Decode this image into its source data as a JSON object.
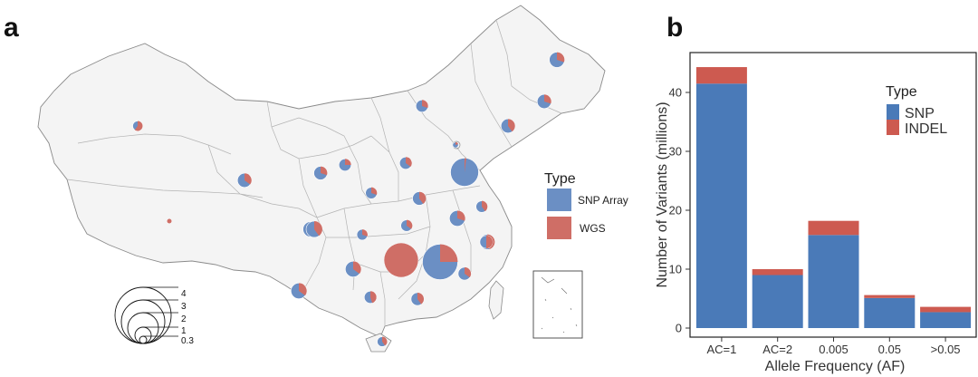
{
  "colors": {
    "snp": "#4a7ab8",
    "indel": "#cd5a50",
    "snp_array": "#6b8fc4",
    "wgs": "#cf6e66"
  },
  "panel_a": {
    "letter": "a",
    "legend": {
      "title": "Type",
      "items": [
        "SNP Array",
        "WGS"
      ]
    },
    "size_legend": {
      "labels": [
        "4",
        "3",
        "2",
        "1",
        "0.3"
      ]
    }
  },
  "panel_b": {
    "letter": "b"
  },
  "chart_data": [
    {
      "type": "bar",
      "stacked": true,
      "categories": [
        "AC=1",
        "AC=2",
        "0.005",
        "0.05",
        ">0.05"
      ],
      "series": [
        {
          "name": "SNP",
          "values": [
            41.5,
            9.0,
            15.8,
            5.1,
            2.7
          ]
        },
        {
          "name": "INDEL",
          "values": [
            2.8,
            1.0,
            2.4,
            0.5,
            0.9
          ]
        }
      ],
      "title": "",
      "xlabel": "Allele Frequency (AF)",
      "ylabel": "Number of Variants (millions)",
      "ylim": [
        0,
        45
      ],
      "yticks": [
        0,
        10,
        20,
        30,
        40
      ],
      "legend": {
        "title": "Type",
        "position": "top-right"
      }
    },
    {
      "type": "pie-map",
      "title": "",
      "legend": {
        "title": "Type",
        "items": [
          "SNP Array",
          "WGS"
        ]
      },
      "size_legend": [
        "4",
        "3",
        "2",
        "1",
        "0.3"
      ],
      "points": [
        {
          "total": 0.3,
          "wgs_frac": 0.6
        },
        {
          "total": 0.05,
          "wgs_frac": 1.0
        },
        {
          "total": 0.6,
          "wgs_frac": 0.35
        },
        {
          "total": 0.55,
          "wgs_frac": 0.3
        },
        {
          "total": 0.45,
          "wgs_frac": 0.25
        },
        {
          "total": 0.4,
          "wgs_frac": 0.3
        },
        {
          "total": 0.45,
          "wgs_frac": 0.35
        },
        {
          "total": 0.1,
          "wgs_frac": 0.2
        },
        {
          "total": 0.45,
          "wgs_frac": 0.3
        },
        {
          "total": 2.4,
          "wgs_frac": 0.02
        },
        {
          "total": 0.7,
          "wgs_frac": 0.3
        },
        {
          "total": 0.6,
          "wgs_frac": 0.3
        },
        {
          "total": 0.6,
          "wgs_frac": 0.4
        },
        {
          "total": 0.55,
          "wgs_frac": 0.4
        },
        {
          "total": 0.4,
          "wgs_frac": 0.4
        },
        {
          "total": 0.4,
          "wgs_frac": 0.35
        },
        {
          "total": 0.75,
          "wgs_frac": 0.3
        },
        {
          "total": 0.35,
          "wgs_frac": 0.3
        },
        {
          "total": 0.7,
          "wgs_frac": 0.3
        },
        {
          "total": 3.5,
          "wgs_frac": 1.0
        },
        {
          "total": 3.8,
          "wgs_frac": 0.25
        },
        {
          "total": 0.75,
          "wgs_frac": 0.35
        },
        {
          "total": 0.75,
          "wgs_frac": 0.35
        },
        {
          "total": 0.45,
          "wgs_frac": 0.45
        },
        {
          "total": 0.5,
          "wgs_frac": 0.4
        },
        {
          "total": 0.5,
          "wgs_frac": 0.35
        },
        {
          "total": 0.3,
          "wgs_frac": 0.4
        },
        {
          "total": 0.7,
          "wgs_frac": 0.45
        },
        {
          "total": 0.5,
          "wgs_frac": 0.5
        },
        {
          "total": 0.8,
          "wgs_frac": 0.4
        }
      ]
    }
  ]
}
